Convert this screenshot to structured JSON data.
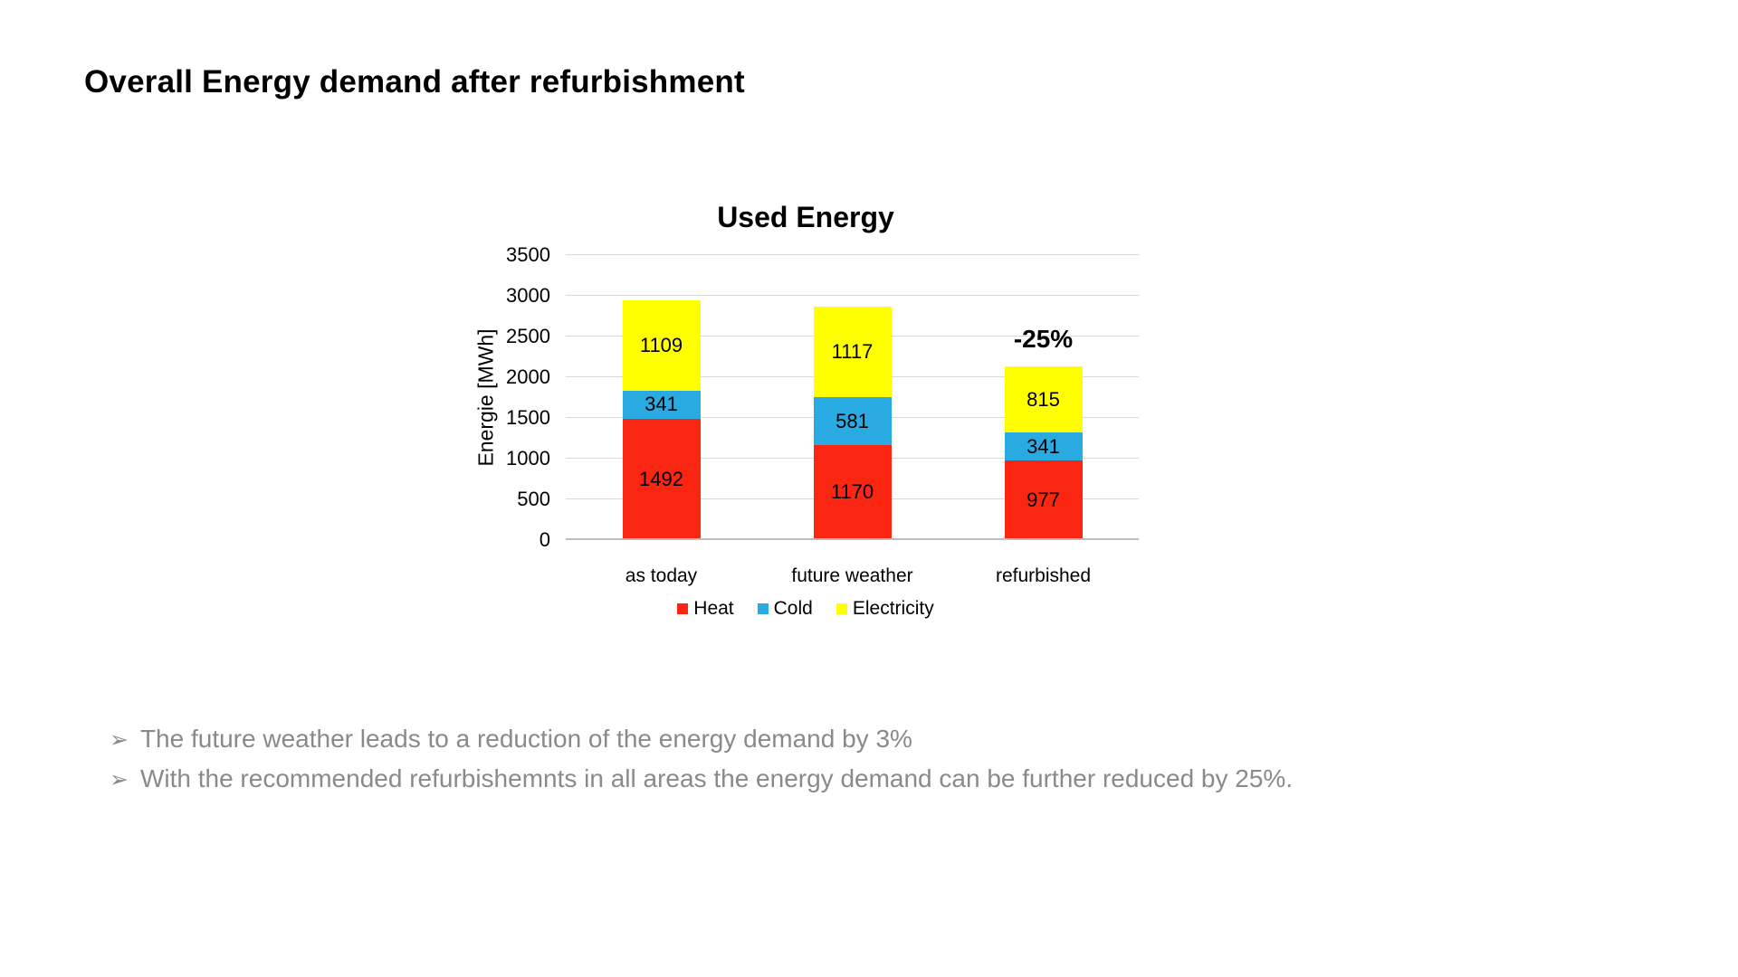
{
  "slide": {
    "title": "Overall Energy demand after refurbishment",
    "bullets": [
      {
        "marker": "➢",
        "text": "The future weather leads to a reduction of the energy demand by 3%"
      },
      {
        "marker": "➢",
        "text": "With the recommended refurbishemnts in all areas the energy demand can be further reduced by 25%."
      }
    ],
    "bullet_text_color": "#8A8A8A"
  },
  "chart_data": {
    "type": "bar",
    "stacked": true,
    "title": "Used Energy",
    "categories": [
      "as today",
      "future weather",
      "refurbished"
    ],
    "series": [
      {
        "name": "Heat",
        "color": "#FA2611",
        "values": [
          1492,
          1170,
          977
        ]
      },
      {
        "name": "Cold",
        "color": "#29ABE2",
        "values": [
          341,
          581,
          341
        ]
      },
      {
        "name": "Electricity",
        "color": "#FFFF00",
        "values": [
          1109,
          1117,
          815
        ]
      }
    ],
    "totals": [
      2942,
      2868,
      2133
    ],
    "xlabel": "",
    "ylabel": "Energie [MWh]",
    "ylim": [
      0,
      3500
    ],
    "yticks": [
      0,
      500,
      1000,
      1500,
      2000,
      2500,
      3000,
      3500
    ],
    "grid": true,
    "gridline_color": "#D9D9D9",
    "axis_line_color": "#BDBDBD",
    "legend_position": "bottom",
    "data_labels": true,
    "annotation": {
      "text": "-25%",
      "category": "refurbished"
    }
  }
}
